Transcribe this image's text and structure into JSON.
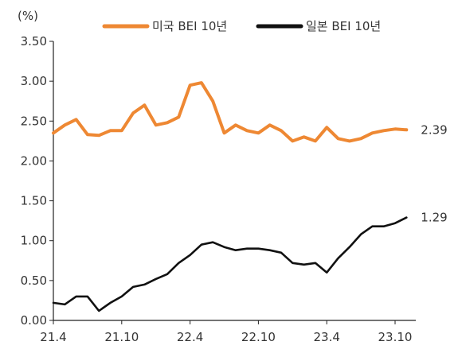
{
  "chart_data": {
    "type": "line",
    "unit_label": "(%)",
    "x_ticks": [
      "21.4",
      "21.10",
      "22.4",
      "22.10",
      "23.4",
      "23.10"
    ],
    "ylim": [
      0,
      3.5
    ],
    "y_ticks": [
      "3.50",
      "3.00",
      "2.50",
      "2.00",
      "1.50",
      "1.00",
      "0.50",
      "0.00"
    ],
    "legend_position": "top-center",
    "grid": false,
    "series": [
      {
        "name": "미국 BEI 10년",
        "color": "#EE8833",
        "end_label": "2.39",
        "x": [
          "21.4",
          "21.5",
          "21.6",
          "21.7",
          "21.8",
          "21.9",
          "21.10",
          "21.11",
          "21.12",
          "22.1",
          "22.2",
          "22.3",
          "22.4",
          "22.5",
          "22.6",
          "22.7",
          "22.8",
          "22.9",
          "22.10",
          "22.11",
          "22.12",
          "23.1",
          "23.2",
          "23.3",
          "23.4",
          "23.5",
          "23.6",
          "23.7",
          "23.8",
          "23.9",
          "23.10",
          "23.11"
        ],
        "values": [
          2.35,
          2.45,
          2.52,
          2.33,
          2.32,
          2.38,
          2.38,
          2.6,
          2.7,
          2.45,
          2.48,
          2.55,
          2.95,
          2.98,
          2.75,
          2.35,
          2.45,
          2.38,
          2.35,
          2.45,
          2.38,
          2.25,
          2.3,
          2.25,
          2.42,
          2.28,
          2.25,
          2.28,
          2.35,
          2.38,
          2.4,
          2.39
        ]
      },
      {
        "name": "일본 BEI 10년",
        "color": "#111111",
        "end_label": "1.29",
        "x": [
          "21.4",
          "21.5",
          "21.6",
          "21.7",
          "21.8",
          "21.9",
          "21.10",
          "21.11",
          "21.12",
          "22.1",
          "22.2",
          "22.3",
          "22.4",
          "22.5",
          "22.6",
          "22.7",
          "22.8",
          "22.9",
          "22.10",
          "22.11",
          "22.12",
          "23.1",
          "23.2",
          "23.3",
          "23.4",
          "23.5",
          "23.6",
          "23.7",
          "23.8",
          "23.9",
          "23.10",
          "23.11"
        ],
        "values": [
          0.22,
          0.2,
          0.3,
          0.3,
          0.12,
          0.22,
          0.3,
          0.42,
          0.45,
          0.52,
          0.58,
          0.72,
          0.82,
          0.95,
          0.98,
          0.92,
          0.88,
          0.9,
          0.9,
          0.88,
          0.85,
          0.72,
          0.7,
          0.72,
          0.6,
          0.78,
          0.92,
          1.08,
          1.18,
          1.18,
          1.22,
          1.29
        ]
      }
    ]
  }
}
